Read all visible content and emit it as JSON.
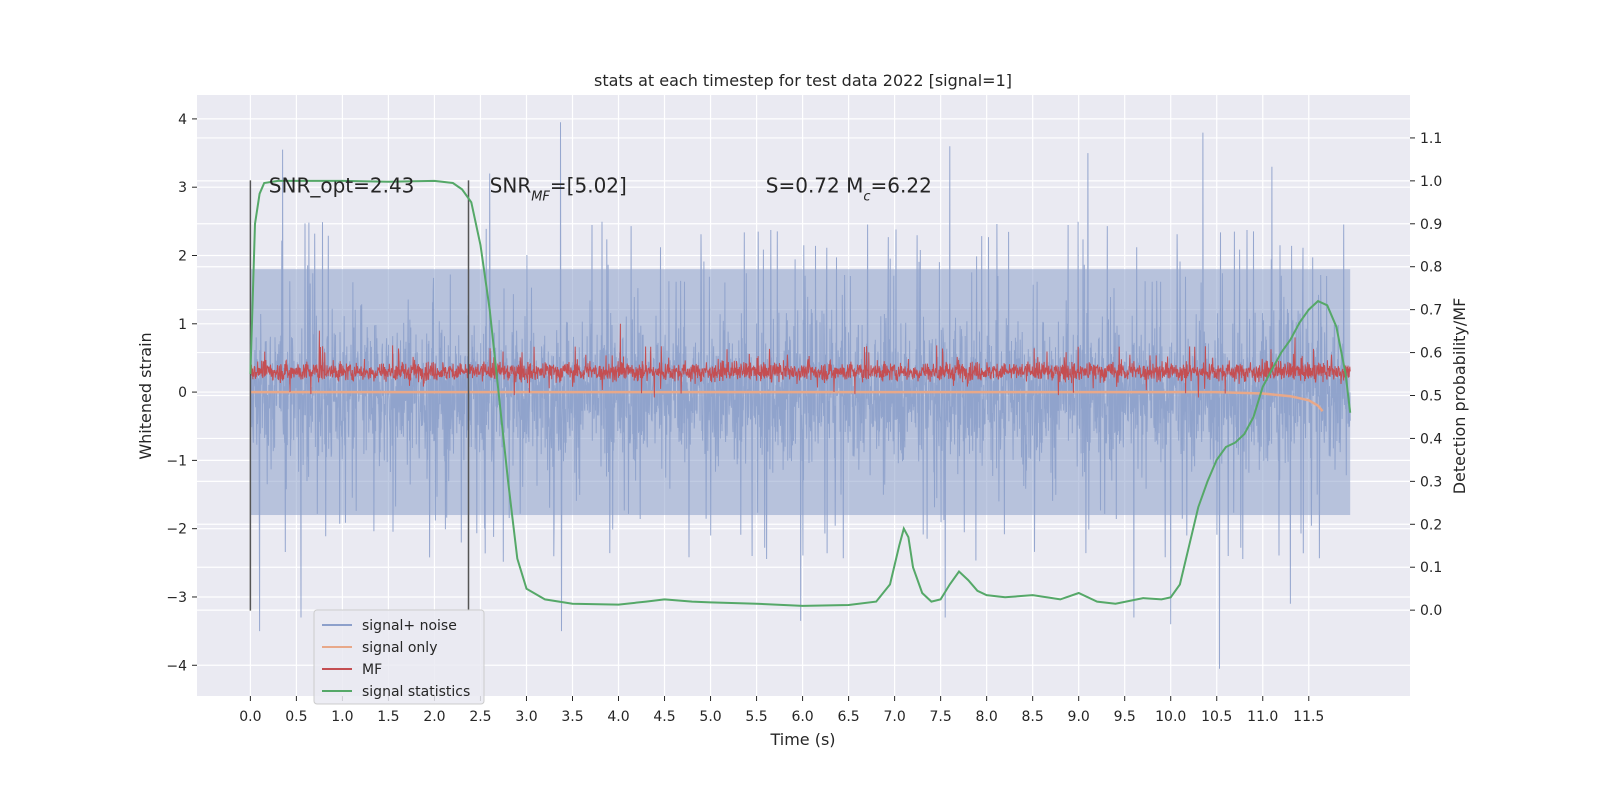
{
  "chart_data": {
    "type": "line",
    "title": "stats at each timestep for test data 2022 [signal=1]",
    "xlabel": "Time (s)",
    "ylabel": "Whitened strain",
    "ylabel_right": "Detection probability/MF",
    "xlim": [
      -0.58,
      12.6
    ],
    "ylim": [
      -4.45,
      4.35
    ],
    "ylim_right": [
      -0.2,
      1.2
    ],
    "x_ticks": [
      0.0,
      0.5,
      1.0,
      1.5,
      2.0,
      2.5,
      3.0,
      3.5,
      4.0,
      4.5,
      5.0,
      5.5,
      6.0,
      6.5,
      7.0,
      7.5,
      8.0,
      8.5,
      9.0,
      9.5,
      10.0,
      10.5,
      11.0,
      11.5
    ],
    "x_tick_labels": [
      "0.0",
      "0.5",
      "1.0",
      "1.5",
      "2.0",
      "2.5",
      "3.0",
      "3.5",
      "4.0",
      "4.5",
      "5.0",
      "5.5",
      "6.0",
      "6.5",
      "7.0",
      "7.5",
      "8.0",
      "8.5",
      "9.0",
      "9.5",
      "10.0",
      "10.5",
      "11.0",
      "11.5"
    ],
    "y_ticks": [
      -4,
      -3,
      -2,
      -1,
      0,
      1,
      2,
      3,
      4
    ],
    "y_tick_labels": [
      "−4",
      "−3",
      "−2",
      "−1",
      "0",
      "1",
      "2",
      "3",
      "4"
    ],
    "y_right_ticks": [
      0.0,
      0.1,
      0.2,
      0.3,
      0.4,
      0.5,
      0.6,
      0.7,
      0.8,
      0.9,
      1.0,
      1.1
    ],
    "y_right_tick_labels": [
      "0.0",
      "0.1",
      "0.2",
      "0.3",
      "0.4",
      "0.5",
      "0.6",
      "0.7",
      "0.8",
      "0.9",
      "1.0",
      "1.1"
    ],
    "grid": true,
    "legend_position": "lower-left",
    "colors": {
      "signal_noise": "#8da0cb",
      "signal_only": "#e8a889",
      "mf": "#c44e52",
      "stats": "#55a868",
      "vline": "#555555",
      "background": "#eaeaf2"
    },
    "vertical_lines": [
      0.0,
      2.37
    ],
    "vertical_line_range": [
      -3.2,
      3.1
    ],
    "annotations": [
      {
        "x": 0.2,
        "y": 3.1,
        "text": "SNR_opt=2.43"
      },
      {
        "x": 2.6,
        "y": 3.1,
        "text": "SNR_MF=[5.02]"
      },
      {
        "x": 5.6,
        "y": 3.1,
        "text": "S=0.72   M_c=6.22"
      }
    ],
    "series": [
      {
        "name": "signal+ noise",
        "axis": "left",
        "style": "noise-band",
        "x_range": [
          0.0,
          11.95
        ],
        "typical_envelope": [
          -1.8,
          1.8
        ],
        "peaks_max": [
          [
            0.35,
            3.55
          ],
          [
            2.6,
            3.2
          ],
          [
            3.37,
            3.95
          ],
          [
            7.6,
            3.6
          ],
          [
            9.1,
            3.5
          ],
          [
            10.35,
            3.8
          ],
          [
            11.1,
            3.3
          ]
        ],
        "peaks_min": [
          [
            0.1,
            -3.5
          ],
          [
            0.55,
            -3.3
          ],
          [
            3.38,
            -3.5
          ],
          [
            5.98,
            -3.35
          ],
          [
            7.55,
            -3.3
          ],
          [
            9.6,
            -3.3
          ],
          [
            10.0,
            -3.4
          ],
          [
            10.53,
            -4.05
          ],
          [
            11.3,
            -3.1
          ]
        ]
      },
      {
        "name": "signal only",
        "axis": "left",
        "x": [
          0.0,
          10.5,
          11.0,
          11.3,
          11.5,
          11.6,
          11.65
        ],
        "y": [
          0.0,
          0.0,
          -0.02,
          -0.06,
          -0.12,
          -0.2,
          -0.28
        ]
      },
      {
        "name": "MF",
        "axis": "left",
        "style": "noise-band",
        "x_range": [
          0.0,
          11.95
        ],
        "typical_envelope": [
          0.0,
          0.6
        ],
        "peaks_max": [
          [
            0.75,
            0.9
          ],
          [
            4.02,
            1.0
          ],
          [
            11.35,
            0.8
          ]
        ]
      },
      {
        "name": "signal statistics",
        "axis": "right",
        "x": [
          0.0,
          0.05,
          0.1,
          0.15,
          0.3,
          0.5,
          1.0,
          1.5,
          2.0,
          2.2,
          2.3,
          2.4,
          2.5,
          2.6,
          2.7,
          2.8,
          2.9,
          3.0,
          3.2,
          3.5,
          4.0,
          4.3,
          4.5,
          4.8,
          5.0,
          5.5,
          6.0,
          6.5,
          6.8,
          6.95,
          7.05,
          7.1,
          7.15,
          7.2,
          7.3,
          7.4,
          7.5,
          7.6,
          7.7,
          7.8,
          7.9,
          8.0,
          8.2,
          8.5,
          8.8,
          9.0,
          9.2,
          9.4,
          9.7,
          9.9,
          10.0,
          10.1,
          10.2,
          10.3,
          10.4,
          10.5,
          10.6,
          10.7,
          10.8,
          10.9,
          11.0,
          11.1,
          11.2,
          11.3,
          11.4,
          11.5,
          11.6,
          11.7,
          11.8,
          11.9,
          11.95
        ],
        "y": [
          0.55,
          0.9,
          0.97,
          0.995,
          1.0,
          1.0,
          1.0,
          0.998,
          1.0,
          0.995,
          0.98,
          0.95,
          0.85,
          0.7,
          0.5,
          0.3,
          0.12,
          0.05,
          0.025,
          0.015,
          0.013,
          0.02,
          0.025,
          0.02,
          0.018,
          0.015,
          0.01,
          0.012,
          0.02,
          0.06,
          0.15,
          0.19,
          0.17,
          0.1,
          0.04,
          0.02,
          0.025,
          0.06,
          0.09,
          0.07,
          0.045,
          0.035,
          0.03,
          0.035,
          0.025,
          0.04,
          0.02,
          0.015,
          0.028,
          0.025,
          0.03,
          0.06,
          0.15,
          0.24,
          0.3,
          0.35,
          0.38,
          0.39,
          0.41,
          0.45,
          0.52,
          0.56,
          0.6,
          0.63,
          0.67,
          0.7,
          0.72,
          0.71,
          0.66,
          0.55,
          0.46
        ]
      }
    ]
  }
}
